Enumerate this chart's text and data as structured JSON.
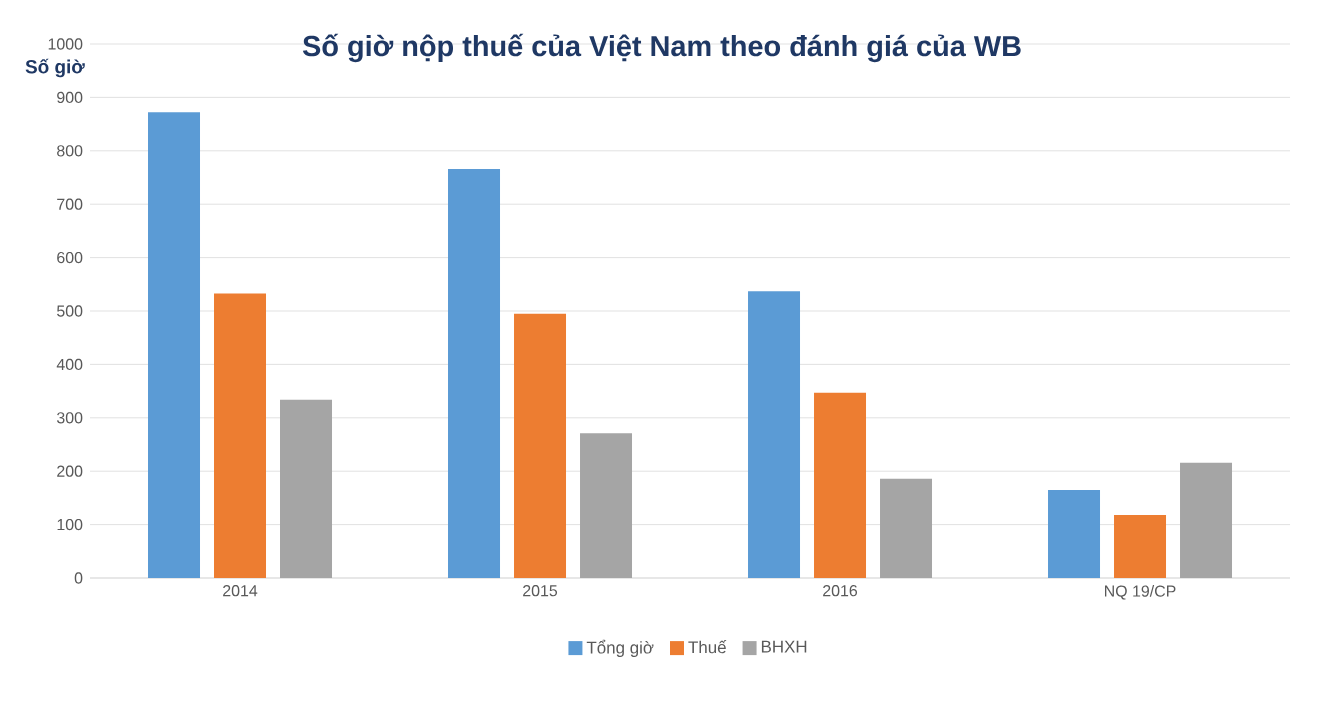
{
  "chart_data": {
    "type": "bar",
    "title": "Số giờ nộp thuế của Việt Nam theo đánh giá của WB",
    "ylabel": "Số giờ",
    "categories": [
      "2014",
      "2015",
      "2016",
      "NQ 19/CP"
    ],
    "series": [
      {
        "name": "Tổng giờ",
        "color": "#5b9bd5",
        "values": [
          872,
          766,
          537,
          165
        ]
      },
      {
        "name": "Thuế",
        "color": "#ed7d31",
        "values": [
          533,
          495,
          347,
          118
        ]
      },
      {
        "name": "BHXH",
        "color": "#a5a5a5",
        "values": [
          334,
          271,
          186,
          216
        ]
      }
    ],
    "ylim": [
      0,
      1000
    ],
    "yticks": [
      0,
      100,
      200,
      300,
      400,
      500,
      600,
      700,
      800,
      900,
      1000
    ],
    "grid": "y",
    "legend": "bottom"
  }
}
